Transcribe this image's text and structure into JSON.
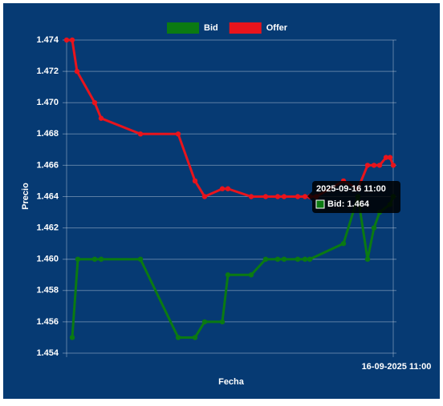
{
  "chart_data": {
    "type": "line",
    "x_label": "Fecha",
    "y_label": "Precio",
    "xlim": [
      0,
      411
    ],
    "xticks": [
      {
        "value": 407,
        "label": "16-09-2025 11:00"
      }
    ],
    "ylim": [
      1.454,
      1.474
    ],
    "yticks": [
      1.454,
      1.456,
      1.458,
      {
        "value": 1.46,
        "label": "1.460"
      },
      1.462,
      1.464,
      1.466,
      1.468,
      {
        "value": 1.47,
        "label": "1.470"
      },
      1.472,
      1.474
    ],
    "grid": true,
    "legend": "top",
    "series": [
      {
        "name": "Bid",
        "color": "#0b7a12",
        "x": [
          7,
          14,
          35,
          43,
          92,
          139,
          160,
          172,
          194,
          201,
          230,
          248,
          263,
          271,
          288,
          297,
          303,
          345,
          363,
          375,
          383,
          390,
          403,
          407
        ],
        "values": [
          1.455,
          1.46,
          1.46,
          1.46,
          1.46,
          1.455,
          1.455,
          1.456,
          1.456,
          1.459,
          1.459,
          1.46,
          1.46,
          1.46,
          1.46,
          1.46,
          1.46,
          1.461,
          1.464,
          1.46,
          1.462,
          1.463,
          1.4635,
          1.464
        ]
      },
      {
        "name": "Offer",
        "color": "#e8141c",
        "x": [
          0,
          7,
          13,
          35,
          43,
          92,
          139,
          160,
          172,
          194,
          201,
          230,
          248,
          263,
          271,
          288,
          297,
          303,
          311,
          345,
          363,
          375,
          383,
          390,
          398,
          403,
          407
        ],
        "values": [
          1.474,
          1.474,
          1.472,
          1.47,
          1.469,
          1.468,
          1.468,
          1.465,
          1.464,
          1.4645,
          1.4645,
          1.464,
          1.464,
          1.464,
          1.464,
          1.464,
          1.464,
          1.464,
          1.464,
          1.465,
          1.4645,
          1.466,
          1.466,
          1.466,
          1.4665,
          1.4665,
          1.466
        ]
      }
    ],
    "tooltip": {
      "title": "2025-09-16 11:00",
      "label": "Bid: 1.464"
    }
  }
}
